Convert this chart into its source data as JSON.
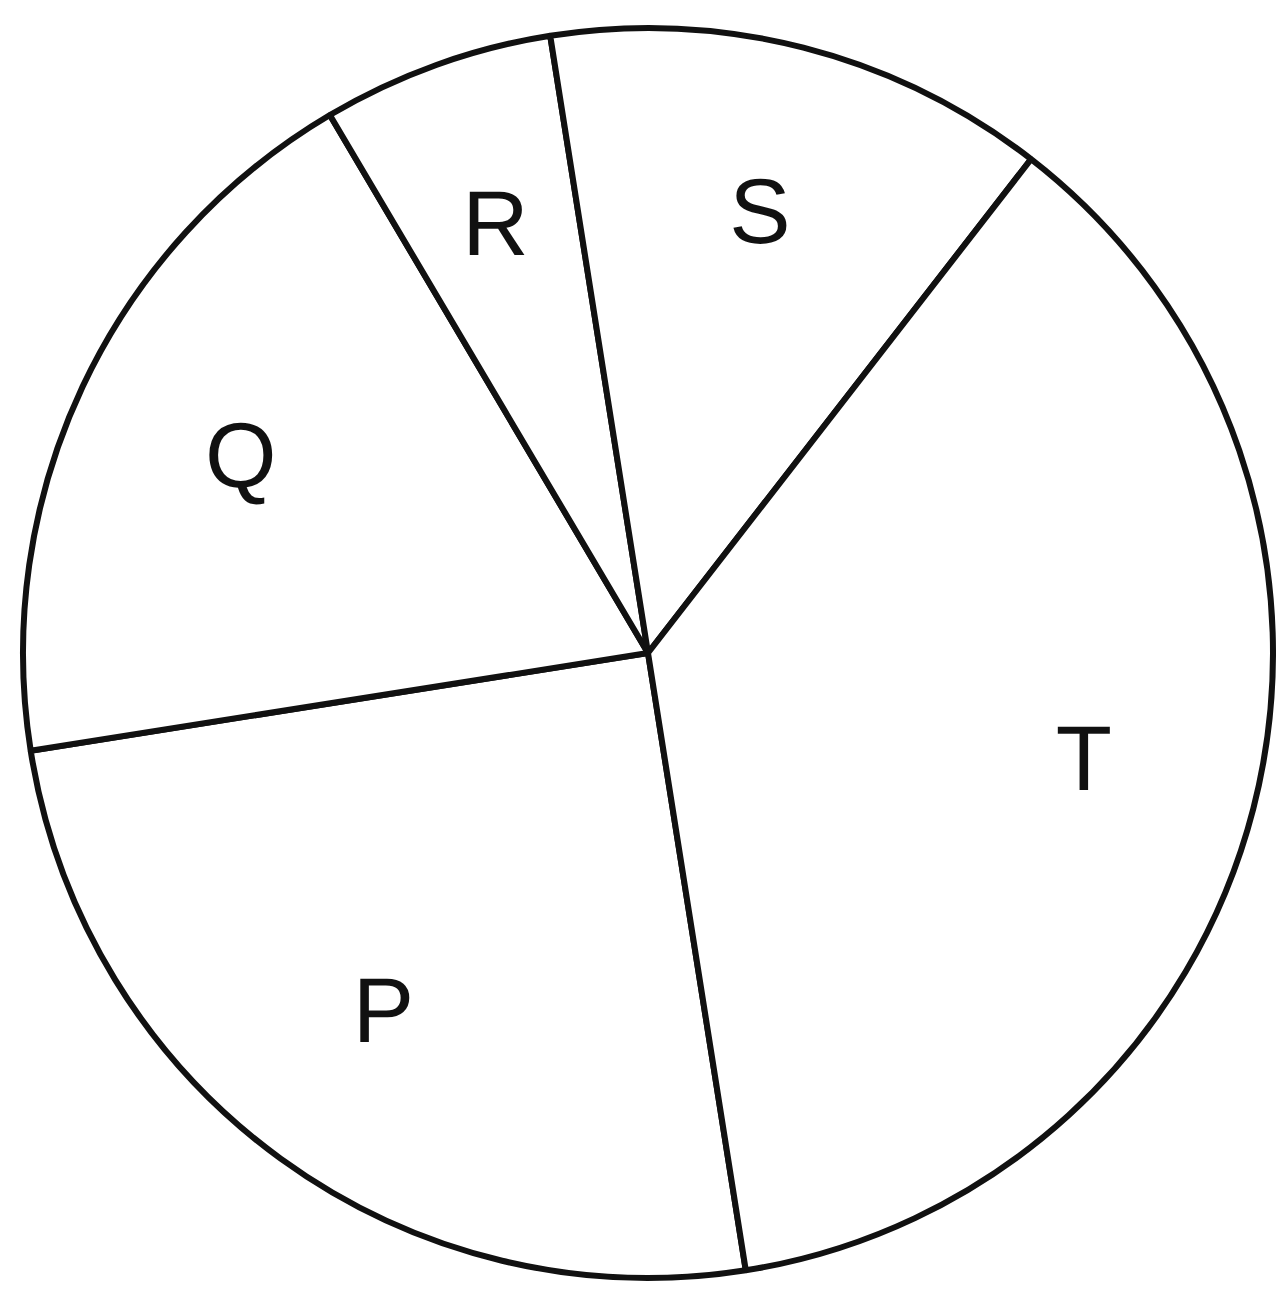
{
  "chart_data": {
    "type": "pie",
    "categories": [
      "P",
      "Q",
      "R",
      "S",
      "T"
    ],
    "values": [
      25,
      19,
      6,
      13,
      37
    ],
    "colors": [
      "#ffffff",
      "#ffffff",
      "#ffffff",
      "#ffffff",
      "#ffffff"
    ]
  }
}
